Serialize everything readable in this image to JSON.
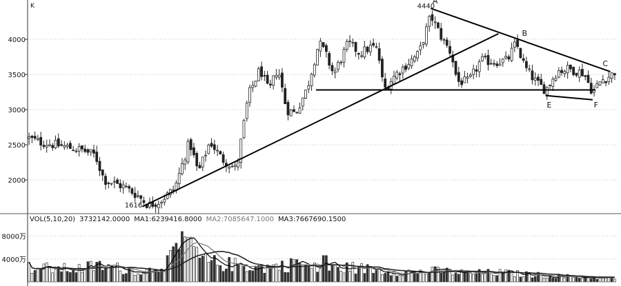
{
  "chart_data": [
    {
      "type": "candlestick",
      "corner_label": "K",
      "ylim": [
        1560,
        4520
      ],
      "y_ticks": [
        {
          "value": 2000,
          "label": "2000"
        },
        {
          "value": 2500,
          "label": "2500"
        },
        {
          "value": 3000,
          "label": "3000"
        },
        {
          "value": 3500,
          "label": "3500"
        },
        {
          "value": 4000,
          "label": "4000"
        }
      ],
      "grid": "dotted-horizontal",
      "price_path_anchors": [
        [
          0,
          2600
        ],
        [
          0.02,
          2540
        ],
        [
          0.06,
          2480
        ],
        [
          0.095,
          2420
        ],
        [
          0.115,
          2350
        ],
        [
          0.13,
          2000
        ],
        [
          0.165,
          1900
        ],
        [
          0.19,
          1760
        ],
        [
          0.205,
          1640
        ],
        [
          0.225,
          1700
        ],
        [
          0.25,
          1880
        ],
        [
          0.275,
          2550
        ],
        [
          0.29,
          2100
        ],
        [
          0.31,
          2550
        ],
        [
          0.33,
          2300
        ],
        [
          0.355,
          2150
        ],
        [
          0.375,
          3200
        ],
        [
          0.395,
          3580
        ],
        [
          0.41,
          3250
        ],
        [
          0.425,
          3600
        ],
        [
          0.44,
          3000
        ],
        [
          0.455,
          2950
        ],
        [
          0.475,
          3300
        ],
        [
          0.495,
          3950
        ],
        [
          0.505,
          3820
        ],
        [
          0.52,
          3500
        ],
        [
          0.545,
          3950
        ],
        [
          0.565,
          3800
        ],
        [
          0.585,
          3900
        ],
        [
          0.595,
          3850
        ],
        [
          0.605,
          3280
        ],
        [
          0.625,
          3500
        ],
        [
          0.645,
          3650
        ],
        [
          0.665,
          3800
        ],
        [
          0.685,
          4340
        ],
        [
          0.705,
          4000
        ],
        [
          0.72,
          3800
        ],
        [
          0.73,
          3400
        ],
        [
          0.75,
          3400
        ],
        [
          0.77,
          3700
        ],
        [
          0.795,
          3680
        ],
        [
          0.815,
          3700
        ],
        [
          0.83,
          3950
        ],
        [
          0.845,
          3600
        ],
        [
          0.865,
          3380
        ],
        [
          0.88,
          3280
        ],
        [
          0.9,
          3550
        ],
        [
          0.92,
          3580
        ],
        [
          0.945,
          3520
        ],
        [
          0.96,
          3250
        ],
        [
          0.975,
          3420
        ],
        [
          0.99,
          3480
        ],
        [
          1.0,
          3560
        ]
      ],
      "trendlines": [
        {
          "name": "uptrend",
          "from": [
            0.195,
            1620
          ],
          "to": [
            0.8,
            4080
          ]
        },
        {
          "name": "A-C",
          "from": [
            0.685,
            4440
          ],
          "to": [
            0.99,
            3540
          ]
        },
        {
          "name": "support",
          "from": [
            0.49,
            3280
          ],
          "to": [
            0.965,
            3280
          ]
        },
        {
          "name": "E-F",
          "from": [
            0.88,
            3200
          ],
          "to": [
            0.96,
            3140
          ]
        }
      ],
      "annotations": [
        {
          "text": "4440",
          "x": 0.662,
          "y": 4440
        },
        {
          "text": "A",
          "x": 0.688,
          "y": 4510
        },
        {
          "text": "B",
          "x": 0.84,
          "y": 4050
        },
        {
          "text": "C",
          "x": 0.977,
          "y": 3620
        },
        {
          "text": "E",
          "x": 0.882,
          "y": 3030
        },
        {
          "text": "F",
          "x": 0.962,
          "y": 3030
        },
        {
          "text": "1616",
          "x": 0.165,
          "y": 1610
        }
      ]
    },
    {
      "type": "bar",
      "header": {
        "vol": "VOL(5,10,20)",
        "vol_value": "3732142.0000",
        "ma1": "MA1:6239416.8000",
        "ma2": "MA2:7085647.1000",
        "ma3": "MA3:7667690.1500"
      },
      "y_ticks": [
        {
          "value": 4000,
          "label": "4000万"
        },
        {
          "value": 8000,
          "label": "8000万"
        }
      ],
      "ylim": [
        0,
        10000
      ],
      "volume_anchors": [
        [
          0,
          2500
        ],
        [
          0.08,
          2200
        ],
        [
          0.12,
          2800
        ],
        [
          0.2,
          1800
        ],
        [
          0.24,
          3500
        ],
        [
          0.27,
          6500
        ],
        [
          0.29,
          4000
        ],
        [
          0.32,
          3200
        ],
        [
          0.36,
          2900
        ],
        [
          0.4,
          2500
        ],
        [
          0.45,
          3000
        ],
        [
          0.5,
          2200
        ],
        [
          0.55,
          2500
        ],
        [
          0.6,
          2000
        ],
        [
          0.65,
          1700
        ],
        [
          0.7,
          1900
        ],
        [
          0.75,
          1500
        ],
        [
          0.8,
          1600
        ],
        [
          0.85,
          1300
        ],
        [
          0.9,
          1000
        ],
        [
          0.95,
          800
        ],
        [
          1.0,
          600
        ]
      ],
      "spikes": [
        {
          "x": 0.263,
          "value": 8800
        },
        {
          "x": 0.275,
          "value": 7800
        },
        {
          "x": 0.281,
          "value": 6200
        },
        {
          "x": 0.244,
          "value": 5500
        },
        {
          "x": 0.505,
          "value": 4600
        },
        {
          "x": 0.455,
          "value": 3900
        }
      ]
    }
  ]
}
